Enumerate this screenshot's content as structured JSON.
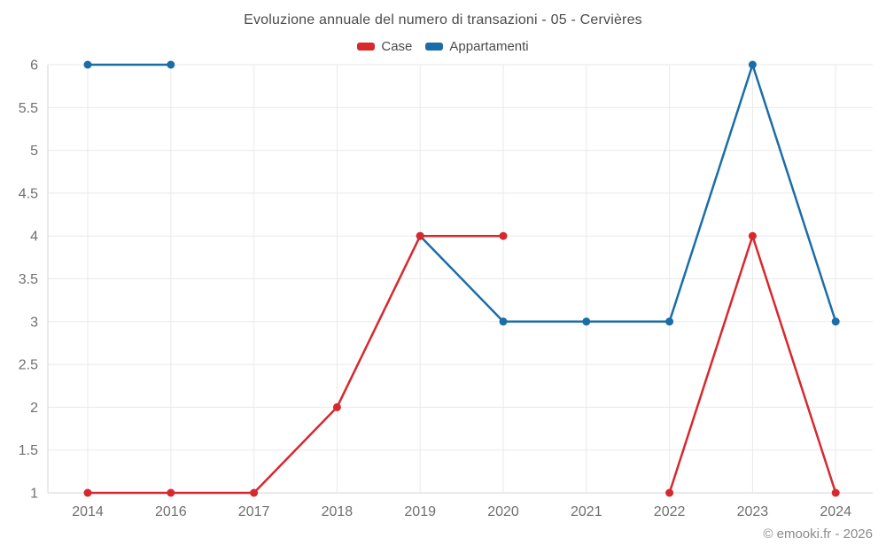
{
  "chart": {
    "title": "Evoluzione annuale del numero di transazioni - 05 - Cervières"
  },
  "footer": {
    "copyright": "© emooki.fr - 2026"
  },
  "chart_data": {
    "type": "line",
    "title": "Evoluzione annuale del numero di transazioni - 05 - Cervières",
    "categories": [
      "2014",
      "2016",
      "2017",
      "2018",
      "2019",
      "2020",
      "2021",
      "2022",
      "2023",
      "2024"
    ],
    "series": [
      {
        "name": "Case",
        "color": "#d7282d",
        "values": [
          1,
          1,
          1,
          2,
          4,
          4,
          null,
          1,
          4,
          1
        ]
      },
      {
        "name": "Appartamenti",
        "color": "#1b6da8",
        "values": [
          6,
          6,
          null,
          null,
          4,
          3,
          3,
          3,
          6,
          3
        ]
      }
    ],
    "xlabel": "",
    "ylabel": "",
    "ylim": [
      1,
      6
    ],
    "ytick_step": 0.5,
    "y_ticks": [
      {
        "label": "6",
        "value": 6
      },
      {
        "label": "5.5",
        "value": 5.5
      },
      {
        "label": "5",
        "value": 5
      },
      {
        "label": "4.5",
        "value": 4.5
      },
      {
        "label": "4",
        "value": 4
      },
      {
        "label": "3.5",
        "value": 3.5
      },
      {
        "label": "3",
        "value": 3
      },
      {
        "label": "2.5",
        "value": 2.5
      },
      {
        "label": "2",
        "value": 2
      },
      {
        "label": "1.5",
        "value": 1.5
      },
      {
        "label": "1",
        "value": 1
      }
    ],
    "grid": true,
    "legend_position": "top",
    "colors": {
      "gridline": "#e9e9e9",
      "axis_line": "#d6d6d6",
      "tick_label": "#6f6f6f",
      "title_text": "#4b4b4b",
      "footer_text": "#8b8b8b"
    }
  }
}
